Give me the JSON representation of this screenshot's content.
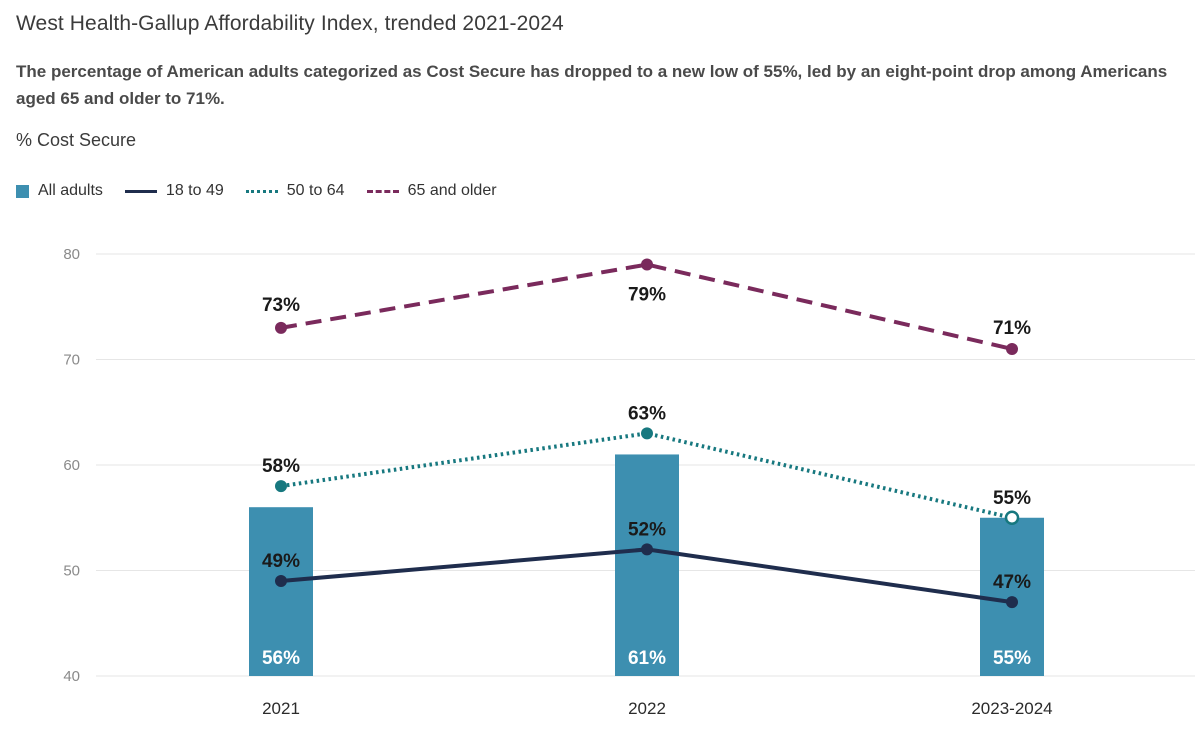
{
  "header": {
    "title": "West Health-Gallup Affordability Index, trended 2021-2024",
    "subtitle": "The percentage of American adults categorized as Cost Secure has dropped to a new low of 55%, led by an eight-point drop among Americans aged 65 and older to 71%.",
    "unit_label": "% Cost Secure"
  },
  "legend": [
    {
      "name": "All adults",
      "style": "bar",
      "color": "#3d8fb0"
    },
    {
      "name": "18 to 49",
      "style": "solid",
      "color": "#1f2d4d"
    },
    {
      "name": "50 to 64",
      "style": "dotted",
      "color": "#17787f"
    },
    {
      "name": "65 and older",
      "style": "dashed",
      "color": "#7a2a5c"
    }
  ],
  "chart_data": {
    "type": "bar",
    "title": "West Health-Gallup Affordability Index, trended 2021-2024",
    "xlabel": "",
    "ylabel": "% Cost Secure",
    "ylim": [
      40,
      80
    ],
    "yticks": [
      40,
      50,
      60,
      70,
      80
    ],
    "grid": true,
    "legend_position": "top-left",
    "categories": [
      "2021",
      "2022",
      "2023-2024"
    ],
    "series": [
      {
        "name": "All adults",
        "type": "bar",
        "color": "#3d8fb0",
        "values": [
          56,
          61,
          55
        ],
        "labels": [
          "56%",
          "61%",
          "55%"
        ]
      },
      {
        "name": "18 to 49",
        "type": "line",
        "style": "solid",
        "color": "#1f2d4d",
        "values": [
          49,
          52,
          47
        ],
        "labels": [
          "49%",
          "52%",
          "47%"
        ]
      },
      {
        "name": "50 to 64",
        "type": "line",
        "style": "dotted",
        "color": "#17787f",
        "values": [
          58,
          63,
          55
        ],
        "labels": [
          "58%",
          "63%",
          "55%"
        ]
      },
      {
        "name": "65 and older",
        "type": "line",
        "style": "dashed",
        "color": "#7a2a5c",
        "values": [
          73,
          79,
          71
        ],
        "labels": [
          "73%",
          "79%",
          "71%"
        ]
      }
    ]
  }
}
